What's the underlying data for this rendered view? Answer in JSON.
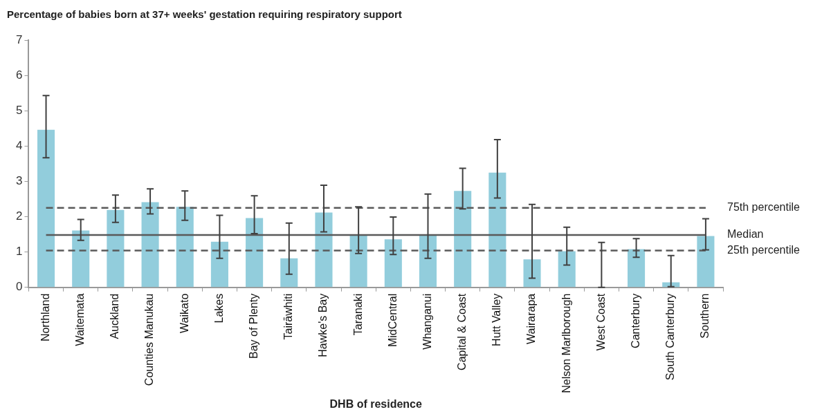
{
  "chart_data": {
    "type": "bar",
    "title": "Percentage of babies born at 37+ weeks' gestation requiring respiratory support",
    "xlabel": "DHB of residence",
    "categories": [
      "Northland",
      "Waitemata",
      "Auckland",
      "Counties Manukau",
      "Waikato",
      "Lakes",
      "Bay of Plenty",
      "Tairāwhiti",
      "Hawke's Bay",
      "Taranaki",
      "MidCentral",
      "Whanganui",
      "Capital & Coast",
      "Hutt Valley",
      "Wairarapa",
      "Nelson Marlborough",
      "West Coast",
      "Canterbury",
      "South Canterbury",
      "Southern"
    ],
    "values": [
      4.46,
      1.61,
      2.19,
      2.41,
      2.28,
      1.29,
      1.96,
      0.82,
      2.12,
      1.48,
      1.36,
      1.48,
      2.73,
      3.25,
      0.79,
      1.02,
      0,
      1.08,
      0.14,
      1.45
    ],
    "errors": [
      [
        3.67,
        5.43
      ],
      [
        1.33,
        1.92
      ],
      [
        1.84,
        2.61
      ],
      [
        2.08,
        2.79
      ],
      [
        1.9,
        2.73
      ],
      [
        0.82,
        2.04
      ],
      [
        1.52,
        2.59
      ],
      [
        0.37,
        1.82
      ],
      [
        1.57,
        2.89
      ],
      [
        0.96,
        2.28
      ],
      [
        0.93,
        1.99
      ],
      [
        0.82,
        2.64
      ],
      [
        2.22,
        3.37
      ],
      [
        2.53,
        4.18
      ],
      [
        0.26,
        2.35
      ],
      [
        0.63,
        1.7
      ],
      [
        0,
        1.27
      ],
      [
        0.85,
        1.38
      ],
      [
        0.02,
        0.9
      ],
      [
        1.06,
        1.94
      ]
    ],
    "color": "#92cddc",
    "ylim": [
      0,
      7
    ],
    "yticks": [
      0,
      1,
      2,
      3,
      4,
      5,
      6,
      7
    ],
    "grid": false,
    "legend": false,
    "ref_lines": [
      {
        "axis": "y",
        "value": 2.25,
        "label": "75th percentile",
        "color": "#595959",
        "line_style": "dashed"
      },
      {
        "axis": "y",
        "value": 1.48,
        "label": "Median",
        "color": "#595959",
        "line_style": "solid"
      },
      {
        "axis": "y",
        "value": 1.04,
        "label": "25th percentile",
        "color": "#595959",
        "line_style": "dashed"
      }
    ]
  }
}
